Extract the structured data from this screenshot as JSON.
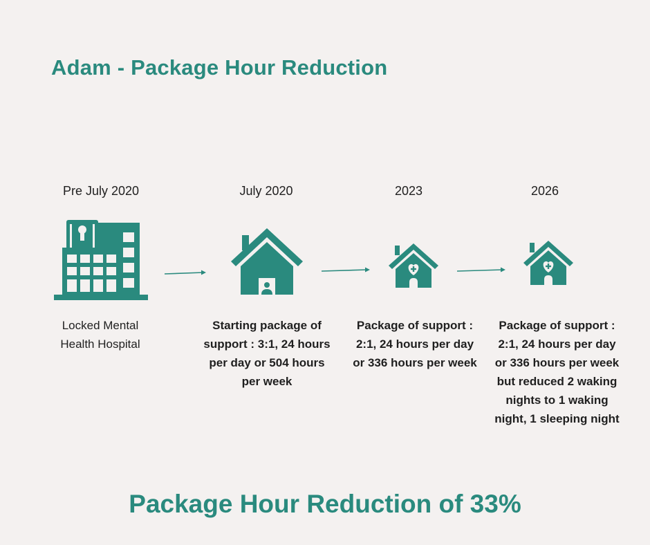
{
  "title": "Adam - Package Hour Reduction",
  "accent_color": "#2a8a7e",
  "stages": [
    {
      "date": "Pre July 2020",
      "icon": "hospital-building-icon",
      "description": "Locked Mental Health Hospital"
    },
    {
      "date": "July 2020",
      "icon": "house-with-person-icon",
      "description": "Starting package of support : 3:1, 24 hours per day or 504 hours per week"
    },
    {
      "date": "2023",
      "icon": "house-with-heart-icon",
      "description": "Package of support : 2:1, 24 hours per day or 336 hours per week"
    },
    {
      "date": "2026",
      "icon": "house-with-heart-icon",
      "description": "Package of support : 2:1, 24 hours per day or 336 hours per week but reduced 2 waking nights to 1 waking night, 1 sleeping night"
    }
  ],
  "footer": "Package Hour Reduction of 33%"
}
